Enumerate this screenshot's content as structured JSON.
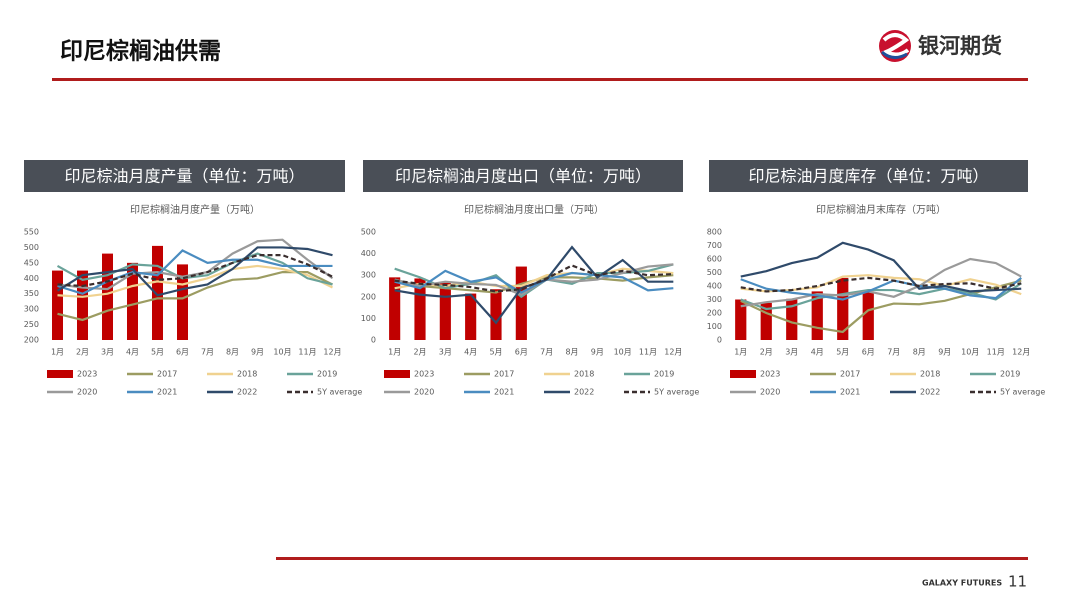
{
  "header": {
    "title": "印尼棕榈油供需",
    "brand": "银河期货"
  },
  "footer": {
    "brand": "GALAXY FUTURES",
    "page": "11"
  },
  "chart_data": [
    {
      "type": "combo",
      "heading": "印尼棕油月度产量（单位：万吨）",
      "title": "印尼棕榈油月度产量（万吨）",
      "categories": [
        "1月",
        "2月",
        "3月",
        "4月",
        "5月",
        "6月",
        "7月",
        "8月",
        "9月",
        "10月",
        "11月",
        "12月"
      ],
      "ylim": [
        200,
        550
      ],
      "yticks": [
        200,
        250,
        300,
        350,
        400,
        450,
        500,
        550
      ],
      "series": [
        {
          "name": "2023",
          "type": "bar",
          "color": "#c00000",
          "values": [
            425,
            425,
            480,
            450,
            505,
            445,
            null,
            null,
            null,
            null,
            null,
            null
          ]
        },
        {
          "name": "2017",
          "type": "line",
          "color": "#9c9c62",
          "values": [
            285,
            265,
            295,
            315,
            335,
            335,
            370,
            395,
            400,
            420,
            420,
            380
          ]
        },
        {
          "name": "2018",
          "type": "line",
          "color": "#f0d290",
          "values": [
            345,
            340,
            350,
            375,
            390,
            380,
            400,
            430,
            440,
            430,
            410,
            370
          ]
        },
        {
          "name": "2019",
          "type": "line",
          "color": "#6aa39a",
          "values": [
            440,
            395,
            410,
            445,
            440,
            400,
            410,
            450,
            480,
            450,
            400,
            380
          ]
        },
        {
          "name": "2020",
          "type": "line",
          "color": "#9a9a9a",
          "values": [
            380,
            370,
            365,
            415,
            420,
            405,
            420,
            480,
            520,
            525,
            460,
            400
          ]
        },
        {
          "name": "2021",
          "type": "line",
          "color": "#4a8cc0",
          "values": [
            375,
            350,
            390,
            420,
            410,
            490,
            450,
            460,
            460,
            440,
            440,
            440
          ]
        },
        {
          "name": "2022",
          "type": "line",
          "color": "#2f4a6a",
          "values": [
            360,
            410,
            420,
            430,
            345,
            365,
            380,
            430,
            500,
            500,
            495,
            475
          ]
        },
        {
          "name": "5Y average",
          "type": "line",
          "dashed": true,
          "color": "#3a2e2e",
          "values": [
            380,
            375,
            390,
            415,
            395,
            400,
            420,
            450,
            475,
            475,
            445,
            405
          ]
        }
      ]
    },
    {
      "type": "combo",
      "heading": "印尼棕榈油月度出口（单位：万吨）",
      "title": "印尼棕榈油月度出口量（万吨）",
      "categories": [
        "1月",
        "2月",
        "3月",
        "4月",
        "5月",
        "6月",
        "7月",
        "8月",
        "9月",
        "10月",
        "11月",
        "12月"
      ],
      "ylim": [
        0,
        500
      ],
      "yticks": [
        0,
        100,
        200,
        300,
        400,
        500
      ],
      "series": [
        {
          "name": "2023",
          "type": "bar",
          "color": "#c00000",
          "values": [
            290,
            285,
            265,
            215,
            235,
            340,
            null,
            null,
            null,
            null,
            null,
            null
          ]
        },
        {
          "name": "2017",
          "type": "line",
          "color": "#9c9c62",
          "values": [
            270,
            250,
            240,
            230,
            220,
            260,
            290,
            290,
            285,
            275,
            290,
            300
          ]
        },
        {
          "name": "2018",
          "type": "line",
          "color": "#f0d290",
          "values": [
            240,
            260,
            250,
            270,
            250,
            250,
            300,
            310,
            300,
            330,
            320,
            310
          ]
        },
        {
          "name": "2019",
          "type": "line",
          "color": "#6aa39a",
          "values": [
            330,
            290,
            240,
            260,
            300,
            200,
            280,
            260,
            310,
            310,
            320,
            350
          ]
        },
        {
          "name": "2020",
          "type": "line",
          "color": "#9a9a9a",
          "values": [
            280,
            250,
            270,
            260,
            255,
            210,
            280,
            270,
            280,
            310,
            340,
            350
          ]
        },
        {
          "name": "2021",
          "type": "line",
          "color": "#4a8cc0",
          "values": [
            270,
            240,
            320,
            270,
            290,
            220,
            280,
            310,
            300,
            290,
            230,
            240
          ]
        },
        {
          "name": "2022",
          "type": "line",
          "color": "#2f4a6a",
          "values": [
            230,
            210,
            200,
            210,
            80,
            240,
            280,
            430,
            290,
            370,
            270,
            270
          ]
        },
        {
          "name": "5Y average",
          "type": "line",
          "dashed": true,
          "color": "#3a2e2e",
          "values": [
            275,
            260,
            255,
            245,
            225,
            235,
            285,
            345,
            300,
            320,
            300,
            305
          ]
        }
      ]
    },
    {
      "type": "combo",
      "heading": "印尼棕油月度库存（单位：万吨）",
      "title": "印尼棕榈油月末库存（万吨）",
      "categories": [
        "1月",
        "2月",
        "3月",
        "4月",
        "5月",
        "6月",
        "7月",
        "8月",
        "9月",
        "10月",
        "11月",
        "12月"
      ],
      "ylim": [
        0,
        800
      ],
      "yticks": [
        0,
        100,
        200,
        300,
        400,
        500,
        600,
        700,
        800
      ],
      "series": [
        {
          "name": "2023",
          "type": "bar",
          "color": "#c00000",
          "values": [
            300,
            275,
            305,
            360,
            460,
            360,
            null,
            null,
            null,
            null,
            null,
            null
          ]
        },
        {
          "name": "2017",
          "type": "line",
          "color": "#9c9c62",
          "values": [
            290,
            200,
            130,
            90,
            60,
            220,
            270,
            265,
            290,
            340,
            390,
            440
          ]
        },
        {
          "name": "2018",
          "type": "line",
          "color": "#f0d290",
          "values": [
            380,
            360,
            370,
            390,
            470,
            480,
            460,
            450,
            400,
            450,
            410,
            340
          ]
        },
        {
          "name": "2019",
          "type": "line",
          "color": "#6aa39a",
          "values": [
            300,
            230,
            250,
            310,
            340,
            370,
            370,
            340,
            380,
            350,
            300,
            420
          ]
        },
        {
          "name": "2020",
          "type": "line",
          "color": "#9a9a9a",
          "values": [
            250,
            280,
            300,
            340,
            330,
            360,
            320,
            400,
            520,
            600,
            570,
            470
          ]
        },
        {
          "name": "2021",
          "type": "line",
          "color": "#4a8cc0",
          "values": [
            450,
            380,
            350,
            330,
            300,
            360,
            440,
            400,
            380,
            330,
            310,
            460
          ]
        },
        {
          "name": "2022",
          "type": "line",
          "color": "#2f4a6a",
          "values": [
            470,
            510,
            570,
            610,
            720,
            670,
            590,
            380,
            400,
            360,
            370,
            380
          ]
        },
        {
          "name": "5Y average",
          "type": "line",
          "dashed": true,
          "color": "#3a2e2e",
          "values": [
            390,
            360,
            370,
            400,
            440,
            460,
            440,
            400,
            415,
            420,
            380,
            420
          ]
        }
      ]
    }
  ]
}
